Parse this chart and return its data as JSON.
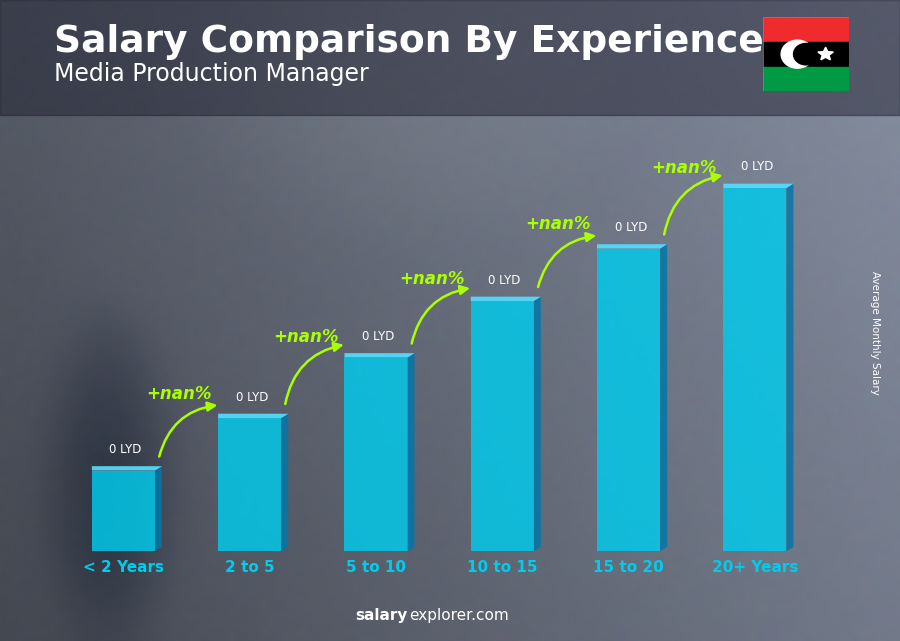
{
  "title": "Salary Comparison By Experience",
  "subtitle": "Media Production Manager",
  "categories": [
    "< 2 Years",
    "2 to 5",
    "5 to 10",
    "10 to 15",
    "15 to 20",
    "20+ Years"
  ],
  "bar_heights": [
    0.2,
    0.33,
    0.48,
    0.62,
    0.75,
    0.9
  ],
  "bar_labels": [
    "0 LYD",
    "0 LYD",
    "0 LYD",
    "0 LYD",
    "0 LYD",
    "0 LYD"
  ],
  "pct_labels": [
    "+nan%",
    "+nan%",
    "+nan%",
    "+nan%",
    "+nan%"
  ],
  "bar_color_face": "#00ccee",
  "bar_color_side": "#0077aa",
  "bar_color_top": "#55ddff",
  "bar_alpha": 0.82,
  "title_color": "#ffffff",
  "subtitle_color": "#ffffff",
  "pct_color": "#aaff00",
  "xtick_color": "#00ccee",
  "footer_salary": "Average Monthly Salary",
  "title_fontsize": 27,
  "subtitle_fontsize": 17,
  "ylim": [
    0,
    1.08
  ],
  "flag_colors": [
    "#ef2b2d",
    "#000000",
    "#009a44"
  ],
  "bg_dark_color": "#3a3a4a",
  "bg_light_color": "#7a8a9a"
}
